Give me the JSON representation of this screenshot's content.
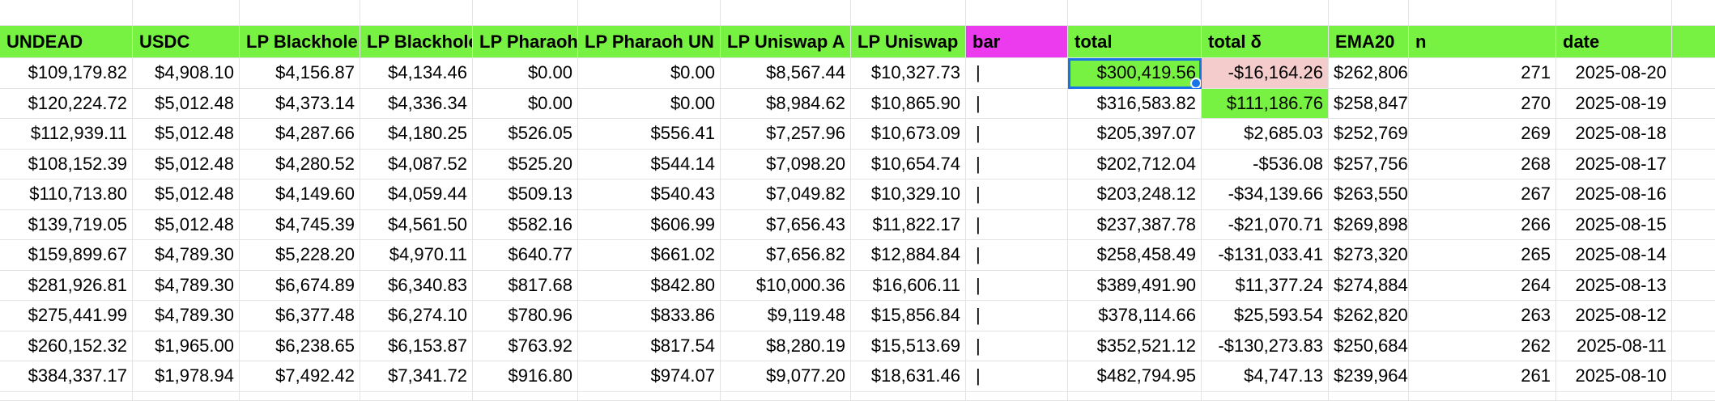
{
  "columns": [
    "UNDEAD",
    "USDC",
    "LP Blackhole",
    "LP Blackhole",
    "LP Pharaoh",
    "LP Pharaoh UN",
    "LP Uniswap A",
    "LP Uniswap",
    "bar",
    "total",
    "total δ",
    "EMA20",
    "n",
    "date"
  ],
  "rows": [
    [
      "$109,179.82",
      "$4,908.10",
      "$4,156.87",
      "$4,134.46",
      "$0.00",
      "$0.00",
      "$8,567.44",
      "$10,327.73",
      "|",
      "$300,419.56",
      "-$16,164.26",
      "$262,806",
      "271",
      "2025-08-20"
    ],
    [
      "$120,224.72",
      "$5,012.48",
      "$4,373.14",
      "$4,336.34",
      "$0.00",
      "$0.00",
      "$8,984.62",
      "$10,865.90",
      "|",
      "$316,583.82",
      "$111,186.76",
      "$258,847",
      "270",
      "2025-08-19"
    ],
    [
      "$112,939.11",
      "$5,012.48",
      "$4,287.66",
      "$4,180.25",
      "$526.05",
      "$556.41",
      "$7,257.96",
      "$10,673.09",
      "|",
      "$205,397.07",
      "$2,685.03",
      "$252,769",
      "269",
      "2025-08-18"
    ],
    [
      "$108,152.39",
      "$5,012.48",
      "$4,280.52",
      "$4,087.52",
      "$525.20",
      "$544.14",
      "$7,098.20",
      "$10,654.74",
      "|",
      "$202,712.04",
      "-$536.08",
      "$257,756",
      "268",
      "2025-08-17"
    ],
    [
      "$110,713.80",
      "$5,012.48",
      "$4,149.60",
      "$4,059.44",
      "$509.13",
      "$540.43",
      "$7,049.82",
      "$10,329.10",
      "|",
      "$203,248.12",
      "-$34,139.66",
      "$263,550",
      "267",
      "2025-08-16"
    ],
    [
      "$139,719.05",
      "$5,012.48",
      "$4,745.39",
      "$4,561.50",
      "$582.16",
      "$606.99",
      "$7,656.43",
      "$11,822.17",
      "|",
      "$237,387.78",
      "-$21,070.71",
      "$269,898",
      "266",
      "2025-08-15"
    ],
    [
      "$159,899.67",
      "$4,789.30",
      "$5,228.20",
      "$4,970.11",
      "$640.77",
      "$661.02",
      "$7,656.82",
      "$12,884.84",
      "|",
      "$258,458.49",
      "-$131,033.41",
      "$273,320",
      "265",
      "2025-08-14"
    ],
    [
      "$281,926.81",
      "$4,789.30",
      "$6,674.89",
      "$6,340.83",
      "$817.68",
      "$842.80",
      "$10,000.36",
      "$16,606.11",
      "|",
      "$389,491.90",
      "$11,377.24",
      "$274,884",
      "264",
      "2025-08-13"
    ],
    [
      "$275,441.99",
      "$4,789.30",
      "$6,377.48",
      "$6,274.10",
      "$780.96",
      "$833.86",
      "$9,119.48",
      "$15,856.84",
      "|",
      "$378,114.66",
      "$25,593.54",
      "$262,820",
      "263",
      "2025-08-12"
    ],
    [
      "$260,152.32",
      "$1,965.00",
      "$6,238.65",
      "$6,153.87",
      "$763.92",
      "$817.54",
      "$8,280.19",
      "$15,513.69",
      "|",
      "$352,521.12",
      "-$130,273.83",
      "$250,684",
      "262",
      "2025-08-11"
    ],
    [
      "$384,337.17",
      "$1,978.94",
      "$7,492.42",
      "$7,341.72",
      "$916.80",
      "$974.07",
      "$9,077.20",
      "$18,631.46",
      "|",
      "$482,794.95",
      "$4,747.13",
      "$239,964",
      "261",
      "2025-08-10"
    ]
  ],
  "highlights": {
    "selected_cell": {
      "row": 0,
      "col": 9
    },
    "colors": {
      "header": "#77f243",
      "bar_header": "#ec3bee",
      "negative": "#f4cccc",
      "positive": "#77f243",
      "selection": "#1a73e8"
    }
  }
}
